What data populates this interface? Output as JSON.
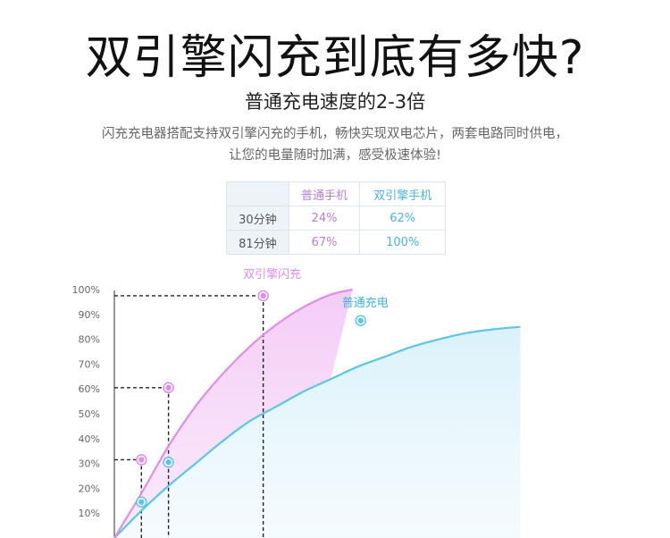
{
  "headline": "双引擎闪充到底有多快?",
  "subhead": "普通充电速度的2-3倍",
  "description": [
    "闪充充电器搭配支持双引擎闪充的手机，畅快实现双电芯片，两套电路同时供电，",
    "让您的电量随时加满，感受极速体验!"
  ],
  "table": {
    "columns": [
      "普通手机",
      "双引擎手机"
    ],
    "rows": [
      {
        "label": "30分钟",
        "values": [
          "24%",
          "62%"
        ]
      },
      {
        "label": "81分钟",
        "values": [
          "67%",
          "100%"
        ]
      }
    ]
  },
  "chart_data": {
    "type": "line",
    "ylabel": "",
    "xlabel": "",
    "yticks": [
      "100%",
      "90%",
      "80%",
      "70%",
      "60%",
      "50%",
      "40%",
      "30%",
      "20%",
      "10%"
    ],
    "ylim": [
      0,
      100
    ],
    "colors": {
      "dual": "#e08ce8",
      "normal": "#5cc6e6"
    },
    "series": [
      {
        "name": "双引擎闪充",
        "key": "dual",
        "curve": [
          [
            0,
            0
          ],
          [
            10,
            18
          ],
          [
            20,
            37
          ],
          [
            30,
            53
          ],
          [
            40,
            66
          ],
          [
            50,
            77
          ],
          [
            60,
            86
          ],
          [
            70,
            93
          ],
          [
            80,
            98
          ],
          [
            88,
            100
          ]
        ],
        "markers": [
          [
            10,
            31.5
          ],
          [
            20,
            60.5
          ],
          [
            55,
            97.5
          ]
        ]
      },
      {
        "name": "普通充电",
        "key": "normal",
        "curve": [
          [
            0,
            0
          ],
          [
            10,
            11
          ],
          [
            20,
            21
          ],
          [
            30,
            30
          ],
          [
            40,
            39
          ],
          [
            50,
            47
          ],
          [
            60,
            53
          ],
          [
            70,
            59
          ],
          [
            80,
            64
          ],
          [
            90,
            69
          ],
          [
            100,
            73
          ],
          [
            110,
            77
          ],
          [
            120,
            80
          ],
          [
            130,
            82.5
          ],
          [
            140,
            84
          ],
          [
            150,
            85
          ]
        ],
        "markers": [
          [
            10,
            14.5
          ],
          [
            20,
            30.5
          ],
          [
            91,
            87.5
          ]
        ]
      }
    ],
    "dashed_guides": [
      [
        10,
        31.5
      ],
      [
        20,
        60.5
      ],
      [
        55,
        97.5
      ]
    ]
  }
}
